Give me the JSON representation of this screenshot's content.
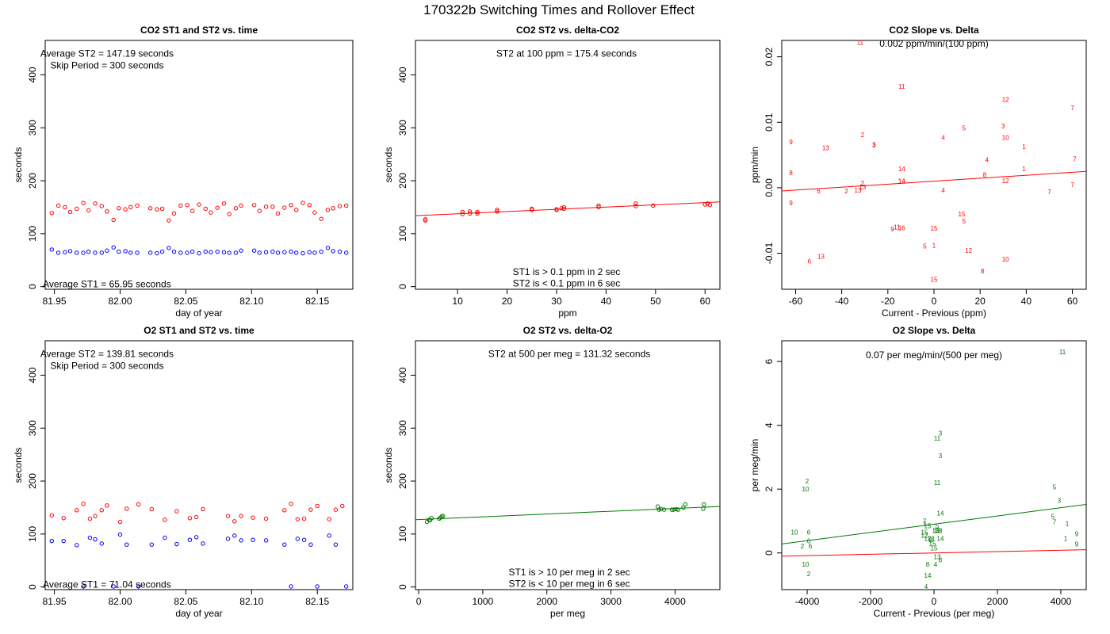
{
  "page_title": "170322b   Switching Times and Rollover Effect",
  "colors": {
    "st2": "#ff0000",
    "st1": "#0000ff",
    "o2": "#007700",
    "fit_red": "#ff0000",
    "fit_green": "#007700"
  },
  "chart_data": [
    {
      "id": "co2-time",
      "type": "scatter",
      "title": "CO2 ST1 and ST2 vs. time",
      "xlabel": "day of year",
      "ylabel": "seconds",
      "xlim": [
        81.943,
        82.177
      ],
      "ylim": [
        -5,
        465
      ],
      "xticks": [
        81.95,
        82.0,
        82.05,
        82.1,
        82.15
      ],
      "xtick_labels": [
        "81.95",
        "82.00",
        "82.05",
        "82.10",
        "82.15"
      ],
      "yticks": [
        0,
        100,
        200,
        300,
        400
      ],
      "annotations": [
        {
          "text": "Average ST2 =  147.19  seconds",
          "x": 81.99,
          "y": 440
        },
        {
          "text": "Skip Period =  300  seconds",
          "x": 81.99,
          "y": 418
        },
        {
          "text": "Average ST1 =  65.95  seconds",
          "x": 81.99,
          "y": 5
        }
      ],
      "series": [
        {
          "name": "ST2",
          "color": "#ff0000",
          "marker": "circle",
          "x": [
            81.948,
            81.953,
            81.958,
            81.962,
            81.967,
            81.972,
            81.976,
            81.981,
            81.986,
            81.99,
            81.995,
            81.999,
            82.004,
            82.008,
            82.013,
            82.023,
            82.028,
            82.032,
            82.037,
            82.041,
            82.046,
            82.051,
            82.055,
            82.06,
            82.065,
            82.069,
            82.074,
            82.079,
            82.083,
            82.088,
            82.092,
            82.102,
            82.106,
            82.111,
            82.116,
            82.12,
            82.125,
            82.13,
            82.134,
            82.139,
            82.144,
            82.148,
            82.153,
            82.158,
            82.162,
            82.167,
            82.172
          ],
          "y": [
            139,
            153,
            150,
            141,
            147,
            158,
            144,
            157,
            152,
            142,
            126,
            148,
            146,
            150,
            153,
            148,
            146,
            147,
            125,
            138,
            153,
            154,
            143,
            155,
            147,
            140,
            149,
            157,
            137,
            148,
            153,
            154,
            143,
            151,
            151,
            138,
            149,
            154,
            145,
            158,
            154,
            140,
            128,
            145,
            148,
            152,
            153
          ]
        },
        {
          "name": "ST1",
          "color": "#0000ff",
          "marker": "circle",
          "x": [
            81.948,
            81.953,
            81.958,
            81.962,
            81.967,
            81.972,
            81.976,
            81.981,
            81.986,
            81.99,
            81.995,
            81.999,
            82.004,
            82.008,
            82.013,
            82.023,
            82.028,
            82.032,
            82.037,
            82.041,
            82.046,
            82.051,
            82.055,
            82.06,
            82.065,
            82.069,
            82.074,
            82.079,
            82.083,
            82.088,
            82.092,
            82.102,
            82.106,
            82.111,
            82.116,
            82.12,
            82.125,
            82.13,
            82.134,
            82.139,
            82.144,
            82.148,
            82.153,
            82.158,
            82.162,
            82.167,
            82.172
          ],
          "y": [
            70,
            64,
            65,
            67,
            64,
            64,
            66,
            64,
            64,
            68,
            74,
            66,
            67,
            64,
            64,
            64,
            63,
            66,
            73,
            66,
            64,
            64,
            66,
            63,
            66,
            65,
            66,
            65,
            64,
            64,
            68,
            68,
            64,
            65,
            66,
            64,
            65,
            66,
            64,
            63,
            65,
            64,
            66,
            73,
            67,
            66,
            64
          ]
        }
      ]
    },
    {
      "id": "co2-st2-delta",
      "type": "scatter",
      "title": "CO2 ST2 vs. delta-CO2",
      "xlabel": "ppm",
      "ylabel": "seconds",
      "xlim": [
        1.5,
        63
      ],
      "ylim": [
        -5,
        465
      ],
      "xticks": [
        10,
        20,
        30,
        40,
        50,
        60
      ],
      "xtick_labels": [
        "10",
        "20",
        "30",
        "40",
        "50",
        "60"
      ],
      "yticks": [
        0,
        100,
        200,
        300,
        400
      ],
      "annotations": [
        {
          "text": "ST2 at 100 ppm =  175.4  seconds",
          "x": 32,
          "y": 440
        },
        {
          "text": "ST1 is > 0.1 ppm in 2 sec",
          "x": 32,
          "y": 28
        },
        {
          "text": "ST2 is < 0.1 ppm in 6 sec",
          "x": 32,
          "y": 6
        }
      ],
      "fit_line": {
        "color": "#ff0000",
        "x": [
          1.5,
          63
        ],
        "y": [
          134,
          160
        ]
      },
      "series": [
        {
          "name": "ST2",
          "color": "#ff0000",
          "marker": "circle",
          "x": [
            3.5,
            3.5,
            11,
            11,
            12.5,
            12.5,
            14,
            14,
            18,
            18,
            25,
            25,
            30,
            30,
            31,
            31.5,
            31.5,
            38.5,
            38.5,
            46,
            46,
            49.5,
            60,
            60.5,
            61
          ],
          "y": [
            125,
            127,
            137,
            141,
            138,
            142,
            138,
            141,
            142,
            145,
            145,
            147,
            145,
            146,
            148,
            147,
            150,
            150,
            153,
            152,
            157,
            153,
            155,
            157,
            154
          ]
        }
      ]
    },
    {
      "id": "co2-slope-delta",
      "type": "scatter",
      "title": "CO2 Slope vs. Delta",
      "xlabel": "Current - Previous (ppm)",
      "ylabel": "ppm/min",
      "xlim": [
        -66,
        66
      ],
      "ylim": [
        -0.0155,
        0.0225
      ],
      "xticks": [
        -60,
        -40,
        -20,
        0,
        20,
        40,
        60
      ],
      "xtick_labels": [
        "-60",
        "-40",
        "-20",
        "0",
        "20",
        "40",
        "60"
      ],
      "yticks": [
        -0.01,
        0.0,
        0.01,
        0.02
      ],
      "ytick_labels": [
        "-0.01",
        "0.00",
        "0.01",
        "0.02"
      ],
      "annotations": [
        {
          "text": "0.002  ppm/min/(100 ppm)",
          "x": 0,
          "y": 0.022
        }
      ],
      "fit_line": {
        "color": "#ff0000",
        "x": [
          -66,
          66
        ],
        "y": [
          -0.0005,
          0.0025
        ]
      },
      "point_labels": {
        "color": "#ff0000",
        "x": [
          -32,
          -14,
          31,
          60,
          -62,
          -31,
          -26,
          -26,
          -47,
          4,
          13,
          30,
          31,
          39,
          -14,
          23,
          -62,
          -14,
          -31,
          -14,
          22,
          -31,
          31,
          60,
          -50,
          -38,
          50,
          39,
          61,
          -62,
          4,
          -33,
          12,
          -18,
          -16,
          -14,
          0,
          13,
          -4,
          0,
          -49,
          -54,
          15,
          21,
          31,
          0
        ],
        "y": [
          0.0222,
          0.0155,
          0.0135,
          0.0122,
          0.007,
          0.0081,
          0.0065,
          0.0066,
          0.0061,
          0.0077,
          0.0091,
          0.0094,
          0.0077,
          0.0063,
          0.0029,
          0.0043,
          0.0023,
          0.001,
          0.0007,
          0.001,
          0.002,
          0.0001,
          0.0011,
          0.0005,
          -0.0005,
          -0.0005,
          -0.0006,
          0.0029,
          0.0044,
          -0.0023,
          -0.0004,
          -0.0004,
          -0.004,
          -0.0063,
          -0.006,
          -0.0061,
          -0.0062,
          -0.0051,
          -0.0089,
          -0.0088,
          -0.0105,
          -0.0112,
          -0.0096,
          -0.0127,
          -0.0109,
          -0.014
        ],
        "text": [
          "11",
          "11",
          "12",
          "7",
          "9",
          "2",
          "3",
          "3",
          "13",
          "4",
          "5",
          "3",
          "10",
          "1",
          "14",
          "4",
          "8",
          "14",
          "2",
          "14",
          "8",
          "13",
          "12",
          "7",
          "6",
          "2",
          "7",
          "1",
          "7",
          "9",
          "4",
          "13",
          "15",
          "9",
          "11",
          "16",
          "15",
          "5",
          "5",
          "1",
          "13",
          "6",
          "12",
          "8",
          "10",
          "15"
        ]
      }
    },
    {
      "id": "o2-time",
      "type": "scatter",
      "title": "O2 ST1 and ST2 vs. time",
      "xlabel": "day of year",
      "ylabel": "seconds",
      "xlim": [
        81.943,
        82.177
      ],
      "ylim": [
        -5,
        465
      ],
      "xticks": [
        81.95,
        82.0,
        82.05,
        82.1,
        82.15
      ],
      "xtick_labels": [
        "81.95",
        "82.00",
        "82.05",
        "82.10",
        "82.15"
      ],
      "yticks": [
        0,
        100,
        200,
        300,
        400
      ],
      "annotations": [
        {
          "text": "Average ST2 =  139.81  seconds",
          "x": 81.99,
          "y": 440
        },
        {
          "text": "Skip Period =  300  seconds",
          "x": 81.99,
          "y": 418
        },
        {
          "text": "Average ST1 =  71.04  seconds",
          "x": 81.99,
          "y": 5
        }
      ],
      "series": [
        {
          "name": "ST2",
          "color": "#ff0000",
          "marker": "circle",
          "x": [
            81.948,
            81.957,
            81.967,
            81.972,
            81.977,
            81.981,
            81.986,
            81.99,
            82.0,
            82.005,
            82.014,
            82.024,
            82.034,
            82.043,
            82.053,
            82.058,
            82.063,
            82.082,
            82.087,
            82.092,
            82.101,
            82.111,
            82.125,
            82.13,
            82.135,
            82.14,
            82.145,
            82.15,
            82.159,
            82.164,
            82.169
          ],
          "y": [
            135,
            130,
            145,
            157,
            129,
            134,
            145,
            154,
            123,
            148,
            156,
            147,
            127,
            143,
            130,
            132,
            147,
            134,
            124,
            134,
            131,
            129,
            145,
            157,
            128,
            129,
            146,
            153,
            128,
            146,
            153
          ]
        },
        {
          "name": "ST1",
          "color": "#0000ff",
          "marker": "circle",
          "x": [
            81.948,
            81.957,
            81.967,
            81.977,
            81.981,
            81.986,
            82.0,
            82.005,
            82.024,
            82.034,
            82.043,
            82.053,
            82.058,
            82.063,
            82.082,
            82.087,
            82.092,
            82.101,
            82.111,
            82.125,
            82.135,
            82.14,
            82.145,
            82.159,
            82.164
          ],
          "y": [
            87,
            87,
            79,
            93,
            90,
            82,
            99,
            80,
            80,
            93,
            81,
            89,
            94,
            82,
            91,
            97,
            88,
            89,
            88,
            80,
            91,
            89,
            80,
            97,
            80
          ]
        },
        {
          "name": "ST1-zero",
          "color": "#0000ff",
          "marker": "circle",
          "x": [
            81.972,
            81.995,
            82.014,
            82.13,
            82.15,
            82.172
          ],
          "y": [
            1,
            1,
            1,
            1,
            1,
            1
          ]
        }
      ]
    },
    {
      "id": "o2-st2-delta",
      "type": "scatter",
      "title": "O2 ST2 vs. delta-O2",
      "xlabel": "per meg",
      "ylabel": "seconds",
      "xlim": [
        -50,
        4700
      ],
      "ylim": [
        -5,
        465
      ],
      "xticks": [
        0,
        1000,
        2000,
        3000,
        4000
      ],
      "xtick_labels": [
        "0",
        "1000",
        "2000",
        "3000",
        "4000"
      ],
      "yticks": [
        0,
        100,
        200,
        300,
        400
      ],
      "annotations": [
        {
          "text": "ST2 at 500 per meg =  131.32  seconds",
          "x": 2350,
          "y": 440
        },
        {
          "text": "ST1 is > 10 per meg in 2 sec",
          "x": 2350,
          "y": 28
        },
        {
          "text": "ST2 is < 10 per meg in 6 sec",
          "x": 2350,
          "y": 6
        }
      ],
      "fit_line": {
        "color": "#007700",
        "x": [
          -50,
          4700
        ],
        "y": [
          127,
          152
        ]
      },
      "series": [
        {
          "name": "ST2",
          "color": "#007700",
          "marker": "circle",
          "x": [
            130,
            160,
            180,
            200,
            320,
            340,
            360,
            380,
            3730,
            3750,
            3780,
            3830,
            3950,
            3980,
            4020,
            4050,
            4130,
            4160,
            4440,
            4450
          ],
          "y": [
            123,
            127,
            126,
            130,
            129,
            131,
            133,
            134,
            152,
            146,
            147,
            146,
            146,
            146,
            147,
            146,
            150,
            156,
            148,
            156
          ]
        }
      ]
    },
    {
      "id": "o2-slope-delta",
      "type": "scatter",
      "title": "O2 Slope vs. Delta",
      "xlabel": "Current - Previous (per meg)",
      "ylabel": "per meg/min",
      "xlim": [
        -4800,
        4800
      ],
      "ylim": [
        -1.15,
        6.65
      ],
      "xticks": [
        -4000,
        -2000,
        0,
        2000,
        4000
      ],
      "xtick_labels": [
        "-4000",
        "-2000",
        "0",
        "2000",
        "4000"
      ],
      "yticks": [
        0,
        2,
        4,
        6
      ],
      "annotations": [
        {
          "text": "0.07  per meg/min/(500 per meg)",
          "x": 0,
          "y": 6.2
        }
      ],
      "fit_line": {
        "color": "#007700",
        "x": [
          -4800,
          4800
        ],
        "y": [
          0.28,
          1.52
        ]
      },
      "fit_line2": {
        "color": "#ff0000",
        "x": [
          -4800,
          4800
        ],
        "y": [
          -0.1,
          0.1
        ]
      },
      "point_labels": {
        "color": "#007700",
        "x": [
          4050,
          200,
          100,
          200,
          -4000,
          -4050,
          100,
          3800,
          3950,
          3750,
          3800,
          4200,
          4500,
          4500,
          4150,
          -4400,
          -3950,
          -4150,
          -3950,
          -3900,
          -4050,
          -3950,
          -300,
          -200,
          -300,
          -300,
          -200,
          -100,
          50,
          100,
          150,
          200,
          100,
          200,
          -100,
          -50,
          0,
          100,
          200,
          -200,
          50,
          -200,
          -250,
          -300
        ],
        "y": [
          6.3,
          3.75,
          3.6,
          3.05,
          2.25,
          2.0,
          2.2,
          2.07,
          1.65,
          1.15,
          0.98,
          0.93,
          0.6,
          0.28,
          0.45,
          0.65,
          0.65,
          0.22,
          0.38,
          0.22,
          -0.35,
          -0.65,
          1.0,
          0.85,
          0.65,
          0.55,
          0.45,
          0.45,
          0.7,
          0.7,
          0.7,
          0.45,
          0.85,
          1.25,
          0.4,
          0.3,
          0.15,
          -0.12,
          -0.22,
          -0.35,
          -0.35,
          -0.7,
          -1.05,
          0.9
        ],
        "text": [
          "11",
          "3",
          "11",
          "3",
          "2",
          "10",
          "11",
          "5",
          "3",
          "5",
          "7",
          "1",
          "9",
          "9",
          "1",
          "10",
          "6",
          "2",
          "6",
          "6",
          "10",
          "2",
          "7",
          "15",
          "15",
          "12",
          "12",
          "13",
          "13",
          "13",
          "13",
          "14",
          "5",
          "14",
          "8",
          "15",
          "15",
          "13",
          "8",
          "8",
          "4",
          "14",
          "4",
          "7"
        ]
      }
    }
  ]
}
